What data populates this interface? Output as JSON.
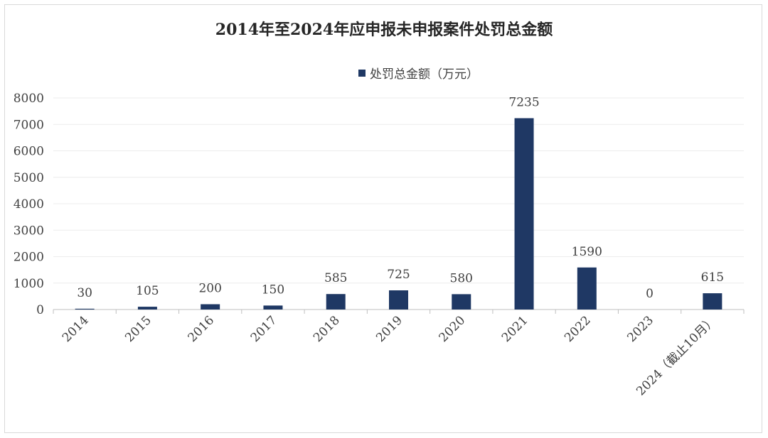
{
  "chart_data": {
    "type": "bar",
    "title": "2014年至2024年应申报未申报案件处罚总金额",
    "legend": {
      "position": "top"
    },
    "categories": [
      "2014",
      "2015",
      "2016",
      "2017",
      "2018",
      "2019",
      "2020",
      "2021",
      "2022",
      "2023",
      "2024（截止10月）"
    ],
    "series": [
      {
        "name": "处罚总金额（万元）",
        "values": [
          30,
          105,
          200,
          150,
          585,
          725,
          580,
          7235,
          1590,
          0,
          615
        ],
        "color": "#1f3864"
      }
    ],
    "ylim": [
      0,
      8000
    ],
    "yticks": [
      "0",
      "1000",
      "2000",
      "3000",
      "4000",
      "5000",
      "6000",
      "7000",
      "8000"
    ],
    "grid": true,
    "xlabel": "",
    "ylabel": ""
  }
}
